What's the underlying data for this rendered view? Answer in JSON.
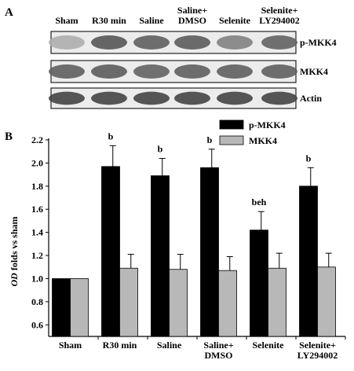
{
  "panel_a": {
    "letter": "A",
    "lanes": [
      "Sham",
      "R30 min",
      "Saline",
      "Saline+|DMSO",
      "Selenite",
      "Selenite+|LY294002"
    ],
    "blots": [
      {
        "label": "p-MKK4",
        "intensity": [
          0.35,
          0.85,
          0.8,
          0.82,
          0.6,
          0.78
        ]
      },
      {
        "label": "MKK4",
        "intensity": [
          0.8,
          0.82,
          0.78,
          0.8,
          0.8,
          0.8
        ]
      },
      {
        "label": "Actin",
        "intensity": [
          0.95,
          0.95,
          0.95,
          0.95,
          0.95,
          0.95
        ]
      }
    ]
  },
  "chart_data": {
    "type": "bar",
    "panel_letter": "B",
    "title": "",
    "categories": [
      "Sham",
      "R30 min",
      "Saline",
      "Saline+|DMSO",
      "Selenite",
      "Selenite+|LY294002"
    ],
    "ylabel_italic": "OD",
    "ylabel_rest": " folds vs sham",
    "ylim": [
      0.5,
      2.2
    ],
    "yticks": [
      "0.6",
      "0.8",
      "1.0",
      "1.2",
      "1.4",
      "1.6",
      "1.8",
      "2.0",
      "2.2"
    ],
    "legend_position": "top-right",
    "series": [
      {
        "name": "p-MKK4",
        "color": "#000000",
        "values": [
          1.0,
          1.97,
          1.89,
          1.96,
          1.42,
          1.8
        ],
        "errors": [
          0.0,
          0.18,
          0.15,
          0.16,
          0.16,
          0.16
        ]
      },
      {
        "name": "MKK4",
        "color": "#b8b8b8",
        "values": [
          1.0,
          1.09,
          1.08,
          1.07,
          1.09,
          1.1
        ],
        "errors": [
          0.0,
          0.12,
          0.13,
          0.12,
          0.13,
          0.12
        ]
      }
    ],
    "annotations": [
      "",
      "b",
      "b",
      "b",
      "beh",
      "b"
    ]
  }
}
